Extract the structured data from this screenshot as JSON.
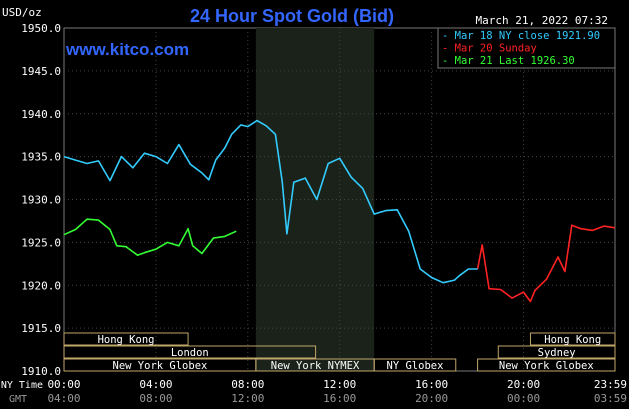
{
  "chart_data": {
    "type": "line",
    "title": "24 Hour Spot Gold (Bid)",
    "unit_label": "USD/oz",
    "timestamp": "March 21, 2022 07:32",
    "website": "www.kitco.com",
    "ylim": [
      1910,
      1950
    ],
    "y_ticks": [
      "1950.0",
      "1945.0",
      "1940.0",
      "1935.0",
      "1930.0",
      "1925.0",
      "1920.0",
      "1915.0",
      "1910.0"
    ],
    "x_ticks_ny": [
      "00:00",
      "04:00",
      "08:00",
      "12:00",
      "16:00",
      "20:00",
      "23:59"
    ],
    "x_ticks_gmt": [
      "04:00",
      "08:00",
      "12:00",
      "16:00",
      "20:00",
      "00:00",
      "03:59"
    ],
    "x_label_ny": "NY Time",
    "x_label_gmt": "GMT",
    "legend": [
      {
        "text": "Mar 18 NY close 1921.90",
        "color": "#33ccff"
      },
      {
        "text": "Mar 20 Sunday",
        "color": "#ff2222"
      },
      {
        "text": "Mar 21 Last 1926.30",
        "color": "#33ff33"
      }
    ],
    "series": [
      {
        "name": "Mar 18 NY close 1921.90",
        "color": "#33ccff",
        "points": [
          [
            0,
            1935
          ],
          [
            0.5,
            1934.6
          ],
          [
            1,
            1934.2
          ],
          [
            1.5,
            1934.5
          ],
          [
            2,
            1932.2
          ],
          [
            2.5,
            1935
          ],
          [
            3,
            1933.7
          ],
          [
            3.5,
            1935.4
          ],
          [
            4,
            1935
          ],
          [
            4.5,
            1934.2
          ],
          [
            5,
            1936.4
          ],
          [
            5.5,
            1934.1
          ],
          [
            6,
            1933.1
          ],
          [
            6.3,
            1932.3
          ],
          [
            6.6,
            1934.6
          ],
          [
            7,
            1936
          ],
          [
            7.3,
            1937.6
          ],
          [
            7.7,
            1938.7
          ],
          [
            8,
            1938.5
          ],
          [
            8.4,
            1939.2
          ],
          [
            8.8,
            1938.6
          ],
          [
            9.2,
            1937.6
          ],
          [
            9.5,
            1932
          ],
          [
            9.7,
            1926
          ],
          [
            10,
            1932
          ],
          [
            10.5,
            1932.5
          ],
          [
            11,
            1930
          ],
          [
            11.5,
            1934.2
          ],
          [
            12,
            1934.8
          ],
          [
            12.5,
            1932.6
          ],
          [
            13,
            1931.3
          ],
          [
            13.5,
            1928.3
          ],
          [
            14,
            1928.7
          ],
          [
            14.5,
            1928.8
          ],
          [
            15,
            1926.3
          ],
          [
            15.5,
            1921.9
          ],
          [
            16,
            1920.9
          ],
          [
            16.5,
            1920.3
          ],
          [
            17,
            1920.6
          ],
          [
            17.2,
            1921.1
          ],
          [
            17.6,
            1921.9
          ],
          [
            18,
            1921.9
          ]
        ]
      },
      {
        "name": "Mar 20 Sunday",
        "color": "#ff2222",
        "points": [
          [
            18,
            1921.9
          ],
          [
            18.2,
            1924.7
          ],
          [
            18.5,
            1919.6
          ],
          [
            19,
            1919.5
          ],
          [
            19.5,
            1918.5
          ],
          [
            20,
            1919.2
          ],
          [
            20.3,
            1918.1
          ],
          [
            20.5,
            1919.4
          ],
          [
            21,
            1920.7
          ],
          [
            21.5,
            1923.3
          ],
          [
            21.8,
            1921.6
          ],
          [
            22.1,
            1927
          ],
          [
            22.5,
            1926.6
          ],
          [
            23,
            1926.4
          ],
          [
            23.5,
            1926.9
          ],
          [
            23.98,
            1926.7
          ]
        ]
      },
      {
        "name": "Mar 21 Last 1926.30",
        "color": "#33ff33",
        "points": [
          [
            0,
            1925.9
          ],
          [
            0.5,
            1926.5
          ],
          [
            1,
            1927.7
          ],
          [
            1.5,
            1927.6
          ],
          [
            2,
            1926.5
          ],
          [
            2.3,
            1924.6
          ],
          [
            2.7,
            1924.5
          ],
          [
            3.2,
            1923.5
          ],
          [
            3.5,
            1923.8
          ],
          [
            4,
            1924.2
          ],
          [
            4.5,
            1925
          ],
          [
            5,
            1924.6
          ],
          [
            5.4,
            1926.6
          ],
          [
            5.6,
            1924.6
          ],
          [
            6,
            1923.7
          ],
          [
            6.5,
            1925.5
          ],
          [
            7,
            1925.7
          ],
          [
            7.5,
            1926.3
          ]
        ]
      }
    ],
    "highlight_band": [
      8.35,
      13.5
    ],
    "markets": {
      "row1": [
        {
          "label": "Hong Kong",
          "start": 0,
          "end": 5.4
        },
        {
          "label": "Hong Kong",
          "start": 20.3,
          "end": 23.98
        }
      ],
      "row2": [
        {
          "label": "London",
          "start": 0,
          "end": 10.95
        },
        {
          "label": "Sydney",
          "start": 18.9,
          "end": 23.98
        }
      ],
      "row3": [
        {
          "label": "New York Globex",
          "start": 0,
          "end": 8.35
        },
        {
          "label": "New York NYMEX",
          "start": 8.35,
          "end": 13.5
        },
        {
          "label": "NY Globex",
          "start": 13.5,
          "end": 17.05
        },
        {
          "label": "New York Globex",
          "start": 18,
          "end": 23.98
        }
      ]
    }
  }
}
